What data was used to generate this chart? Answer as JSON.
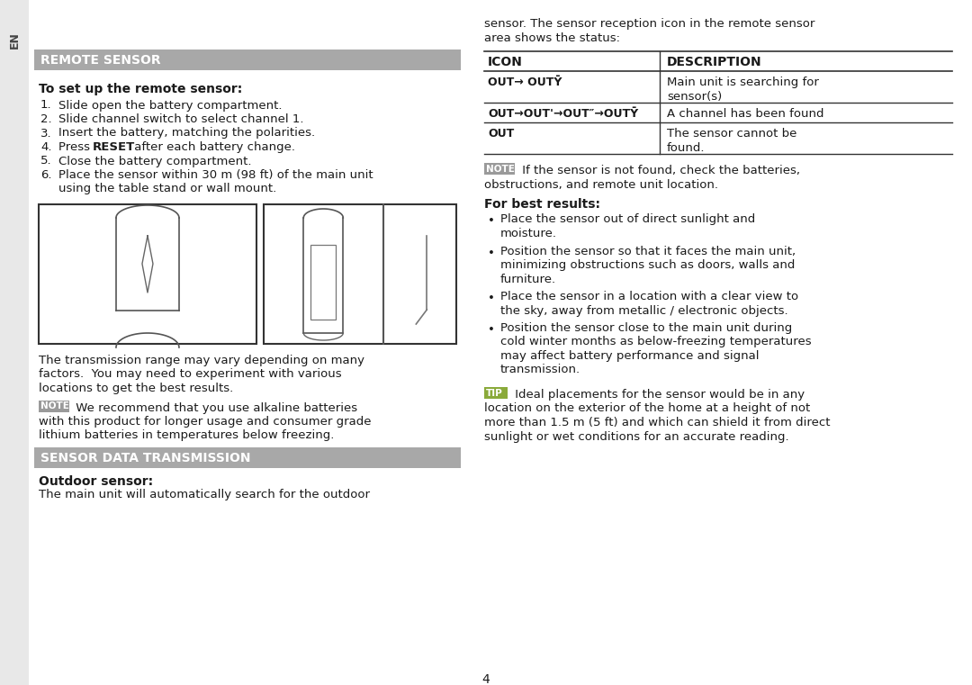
{
  "bg_color": "#ffffff",
  "sidebar_color": "#e8e8e8",
  "header_color": "#a8a8a8",
  "header_text_color": "#ffffff",
  "note_box_color": "#9a9a9a",
  "text_color": "#1a1a1a",
  "page_number": "4",
  "left": {
    "header": "REMOTE SENSOR",
    "setup_title_normal": "To set up the remote sensor:",
    "steps": [
      [
        "Slide open the battery compartment."
      ],
      [
        "Slide channel switch to select channel 1."
      ],
      [
        "Insert the battery, matching the polarities."
      ],
      [
        "Press ",
        "RESET",
        " after each battery change."
      ],
      [
        "Close the battery compartment."
      ],
      [
        "Place the sensor within 30 m (98 ft) of the main unit",
        "using the table stand or wall mount."
      ]
    ],
    "trans_text": [
      "The transmission range may vary depending on many",
      "factors.  You may need to experiment with various",
      "locations to get the best results."
    ],
    "note1_text": [
      " We recommend that you use alkaline batteries",
      "with this product for longer usage and consumer grade",
      "lithium batteries in temperatures below freezing."
    ],
    "section2": "SENSOR DATA TRANSMISSION",
    "outdoor_title": "Outdoor sensor:",
    "outdoor_text": "The main unit will automatically search for the outdoor"
  },
  "right": {
    "intro": [
      "sensor. The sensor reception icon in the remote sensor",
      "area shows the status:"
    ],
    "tbl_h": [
      "ICON",
      "DESCRIPTION"
    ],
    "rows": [
      {
        "icon": "OUT→ OUTȲ",
        "desc": [
          "Main unit is searching for",
          "sensor(s)"
        ]
      },
      {
        "icon": "OUT→OUT'→OUT″→OUTȲ",
        "desc": [
          "A channel has been found"
        ]
      },
      {
        "icon": "OUT",
        "desc": [
          "The sensor cannot be",
          "found."
        ]
      }
    ],
    "note2_text": [
      " If the sensor is not found, check the batteries,",
      "obstructions, and remote unit location."
    ],
    "best_title": "For best results:",
    "bullets": [
      [
        "Place the sensor out of direct sunlight and",
        "moisture."
      ],
      [
        "Position the sensor so that it faces the main unit,",
        "minimizing obstructions such as doors, walls and",
        "furniture."
      ],
      [
        "Place the sensor in a location with a clear view to",
        "the sky, away from metallic / electronic objects."
      ],
      [
        "Position the sensor close to the main unit during",
        "cold winter months as below-freezing temperatures",
        "may affect battery performance and signal",
        "transmission."
      ]
    ],
    "tip_text": [
      " Ideal placements for the sensor would be in any",
      "location on the exterior of the home at a height of not",
      "more than 1.5 m (5 ft) and which can shield it from direct",
      "sunlight or wet conditions for an accurate reading."
    ]
  }
}
